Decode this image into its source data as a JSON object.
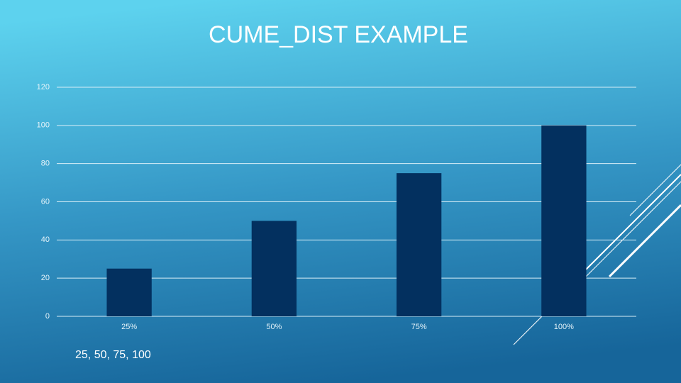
{
  "chart_data": {
    "type": "bar",
    "title": "CUME_DIST EXAMPLE",
    "categories": [
      "25%",
      "50%",
      "75%",
      "100%"
    ],
    "values": [
      25,
      50,
      75,
      100
    ],
    "color": "#03305f",
    "ylim": [
      0,
      120
    ],
    "yticks": [
      0,
      20,
      40,
      60,
      80,
      100,
      120
    ],
    "grid": true,
    "caption": "25, 50, 75, 100"
  }
}
